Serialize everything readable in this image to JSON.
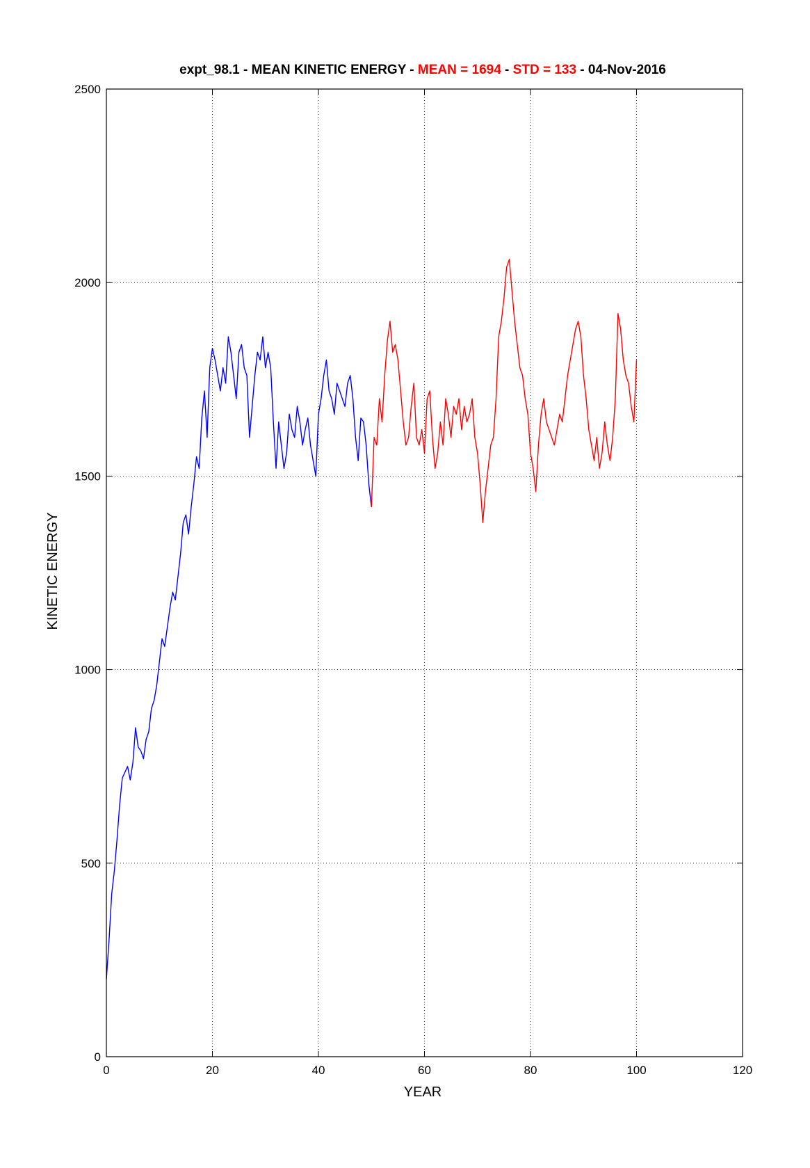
{
  "chart_data": {
    "type": "line",
    "title": {
      "prefix": "expt_98.1 - MEAN KINETIC ENERGY - ",
      "mean_label": "MEAN =  1694",
      "sep1": " - ",
      "std_label": "STD =  133",
      "suffix": " - 04-Nov-2016"
    },
    "xlabel": "YEAR",
    "ylabel": "KINETIC ENERGY",
    "xlim": [
      0,
      120
    ],
    "ylim": [
      0,
      2500
    ],
    "xticks": [
      0,
      20,
      40,
      60,
      80,
      100,
      120
    ],
    "yticks": [
      0,
      500,
      1000,
      1500,
      2000,
      2500
    ],
    "grid": true,
    "colors": {
      "spinup": "#0000ff",
      "analysis": "#ff0000",
      "title_highlight": "#ff0000",
      "text": "#000000"
    },
    "series": [
      {
        "color": "#0000ff",
        "x": [
          0,
          0.5,
          1,
          1.5,
          2,
          2.5,
          3,
          3.5,
          4,
          4.5,
          5,
          5.5,
          6,
          6.5,
          7,
          7.5,
          8,
          8.5,
          9,
          9.5,
          10,
          10.5,
          11,
          11.5,
          12,
          12.5,
          13,
          13.5,
          14,
          14.5,
          15,
          15.5,
          16,
          16.5,
          17,
          17.5,
          18,
          18.5,
          19,
          19.5,
          20,
          20.5,
          21,
          21.5,
          22,
          22.5,
          23,
          23.5,
          24,
          24.5,
          25,
          25.5,
          26,
          26.5,
          27,
          27.5,
          28,
          28.5,
          29,
          29.5,
          30,
          30.5,
          31,
          31.5,
          32,
          32.5,
          33,
          33.5,
          34,
          34.5,
          35,
          35.5,
          36,
          36.5,
          37,
          37.5,
          38,
          38.5,
          39,
          39.5,
          40,
          40.5,
          41,
          41.5,
          42,
          42.5,
          43,
          43.5,
          44,
          44.5,
          45,
          45.5,
          46,
          46.5,
          47,
          47.5,
          48,
          48.5,
          49,
          49.5,
          50
        ],
        "y": [
          200,
          300,
          420,
          480,
          560,
          650,
          720,
          735,
          750,
          715,
          760,
          850,
          800,
          790,
          770,
          820,
          840,
          900,
          920,
          960,
          1020,
          1080,
          1060,
          1110,
          1160,
          1200,
          1180,
          1240,
          1300,
          1380,
          1400,
          1350,
          1420,
          1480,
          1550,
          1520,
          1650,
          1720,
          1600,
          1780,
          1830,
          1800,
          1760,
          1720,
          1780,
          1740,
          1860,
          1820,
          1760,
          1700,
          1820,
          1840,
          1780,
          1760,
          1600,
          1680,
          1760,
          1820,
          1800,
          1860,
          1780,
          1820,
          1780,
          1640,
          1520,
          1640,
          1580,
          1520,
          1560,
          1660,
          1620,
          1600,
          1680,
          1640,
          1580,
          1620,
          1650,
          1580,
          1540,
          1500,
          1660,
          1700,
          1760,
          1800,
          1720,
          1700,
          1660,
          1740,
          1720,
          1700,
          1680,
          1740,
          1760,
          1700,
          1600,
          1540,
          1650,
          1640,
          1580,
          1480,
          1420
        ]
      },
      {
        "color": "#ff0000",
        "x": [
          50,
          50.5,
          51,
          51.5,
          52,
          52.5,
          53,
          53.5,
          54,
          54.5,
          55,
          55.5,
          56,
          56.5,
          57,
          57.5,
          58,
          58.5,
          59,
          59.5,
          60,
          60.5,
          61,
          61.5,
          62,
          62.5,
          63,
          63.5,
          64,
          64.5,
          65,
          65.5,
          66,
          66.5,
          67,
          67.5,
          68,
          68.5,
          69,
          69.5,
          70,
          70.5,
          71,
          71.5,
          72,
          72.5,
          73,
          73.5,
          74,
          74.5,
          75,
          75.5,
          76,
          76.5,
          77,
          77.5,
          78,
          78.5,
          79,
          79.5,
          80,
          80.5,
          81,
          81.5,
          82,
          82.5,
          83,
          83.5,
          84,
          84.5,
          85,
          85.5,
          86,
          86.5,
          87,
          87.5,
          88,
          88.5,
          89,
          89.5,
          90,
          90.5,
          91,
          91.5,
          92,
          92.5,
          93,
          93.5,
          94,
          94.5,
          95,
          95.5,
          96,
          96.5,
          97,
          97.5,
          98,
          98.5,
          99,
          99.5,
          100
        ],
        "y": [
          1420,
          1600,
          1580,
          1700,
          1640,
          1760,
          1850,
          1900,
          1820,
          1840,
          1800,
          1720,
          1640,
          1580,
          1600,
          1680,
          1740,
          1600,
          1580,
          1620,
          1560,
          1700,
          1720,
          1600,
          1520,
          1560,
          1640,
          1580,
          1700,
          1660,
          1600,
          1680,
          1660,
          1700,
          1620,
          1680,
          1640,
          1660,
          1700,
          1600,
          1560,
          1480,
          1380,
          1460,
          1520,
          1580,
          1600,
          1700,
          1860,
          1900,
          1960,
          2040,
          2060,
          1980,
          1900,
          1840,
          1780,
          1760,
          1700,
          1660,
          1560,
          1520,
          1460,
          1580,
          1660,
          1700,
          1640,
          1620,
          1600,
          1580,
          1620,
          1660,
          1640,
          1700,
          1760,
          1800,
          1840,
          1880,
          1900,
          1860,
          1760,
          1700,
          1620,
          1580,
          1540,
          1600,
          1520,
          1560,
          1640,
          1580,
          1540,
          1600,
          1700,
          1920,
          1880,
          1800,
          1760,
          1740,
          1680,
          1640,
          1800
        ]
      }
    ]
  }
}
